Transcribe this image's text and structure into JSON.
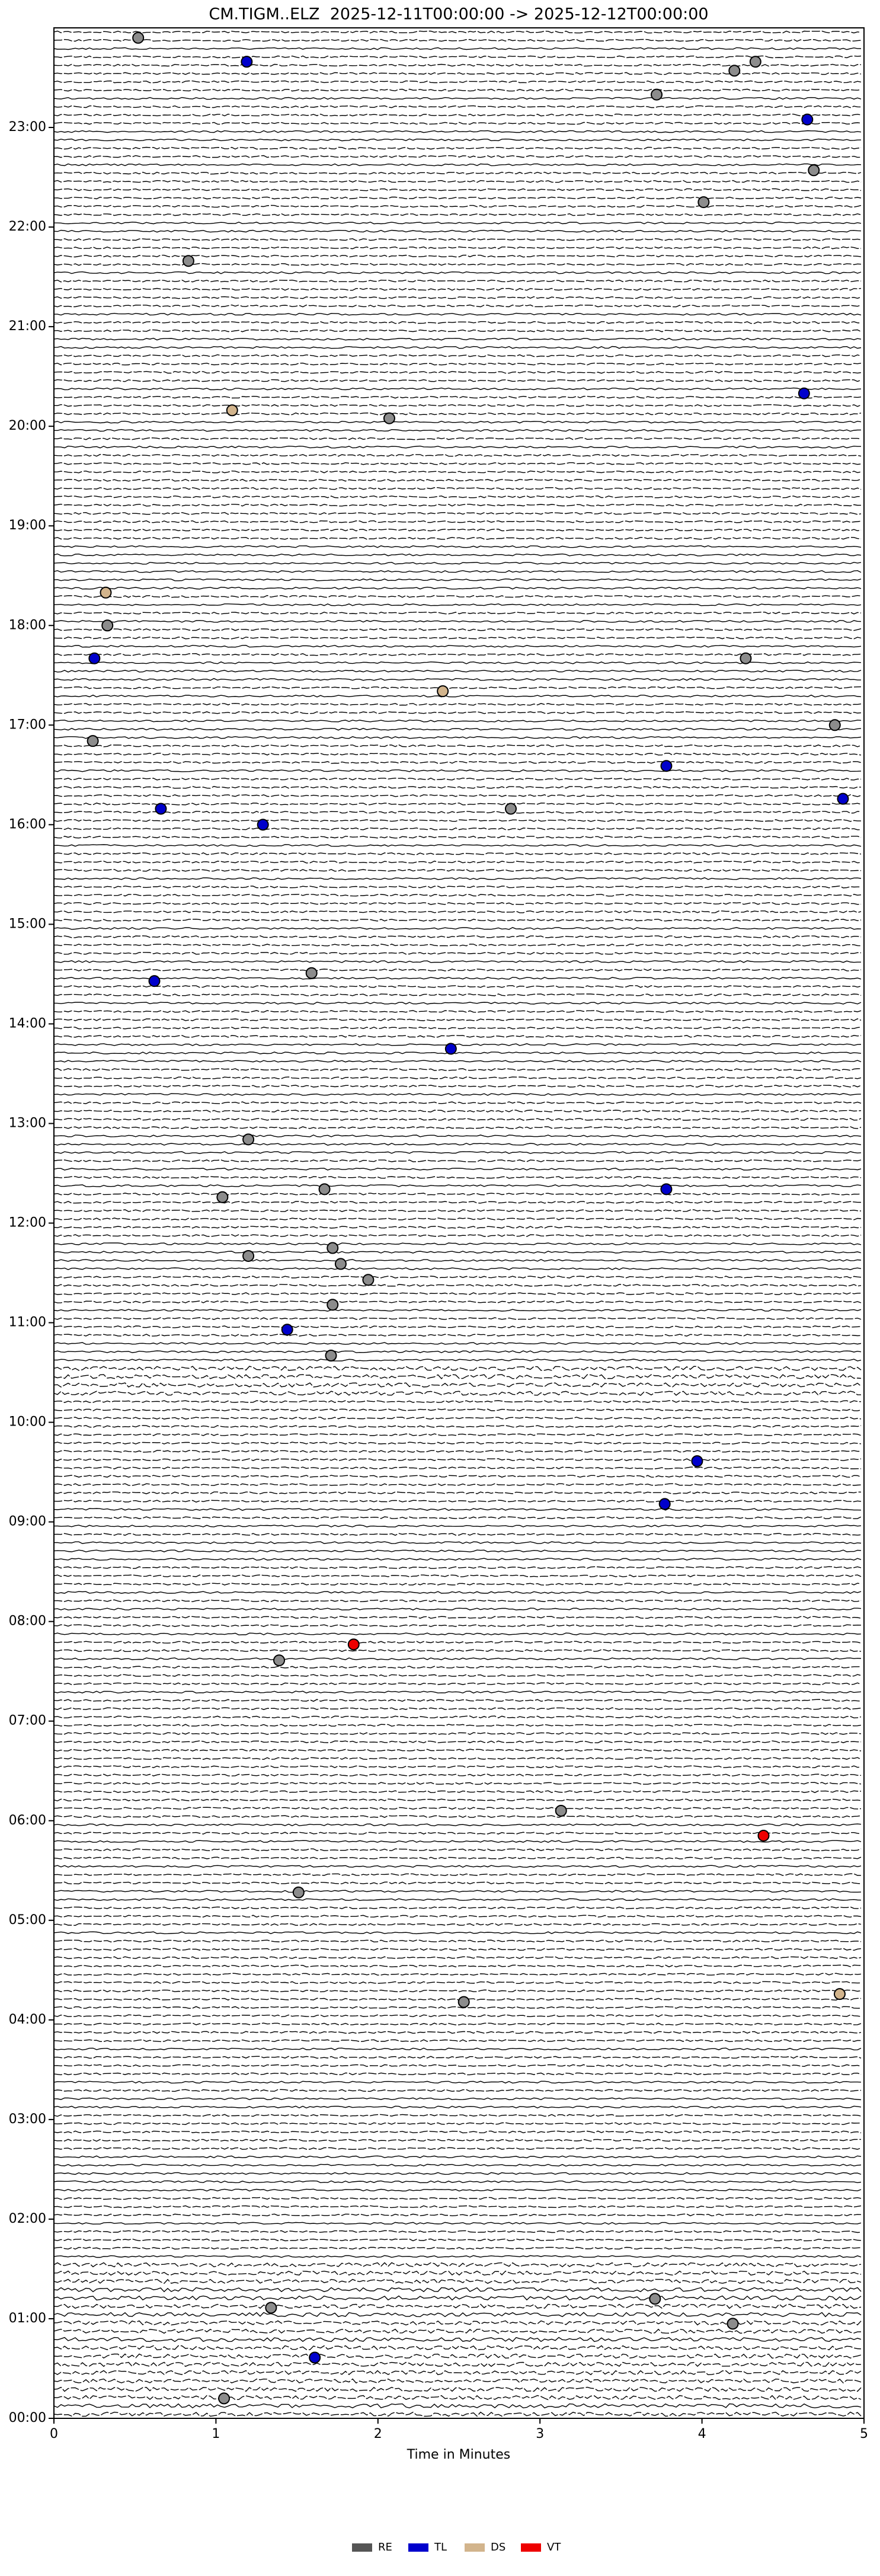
{
  "chart_data": {
    "type": "helicorder",
    "title": "CM.TIGM..ELZ  2025-12-11T00:00:00 -> 2025-12-12T00:00:00",
    "x_label": "Time in Minutes",
    "xlim": [
      0,
      5
    ],
    "xticks": [
      0,
      1,
      2,
      3,
      4,
      5
    ],
    "ylim": [
      24,
      0
    ],
    "yticks": [
      {
        "value": 0,
        "label": "00:00"
      },
      {
        "value": 1,
        "label": "01:00"
      },
      {
        "value": 2,
        "label": "02:00"
      },
      {
        "value": 3,
        "label": "03:00"
      },
      {
        "value": 4,
        "label": "04:00"
      },
      {
        "value": 5,
        "label": "05:00"
      },
      {
        "value": 6,
        "label": "06:00"
      },
      {
        "value": 7,
        "label": "07:00"
      },
      {
        "value": 8,
        "label": "08:00"
      },
      {
        "value": 9,
        "label": "09:00"
      },
      {
        "value": 10,
        "label": "10:00"
      },
      {
        "value": 11,
        "label": "11:00"
      },
      {
        "value": 12,
        "label": "12:00"
      },
      {
        "value": 13,
        "label": "13:00"
      },
      {
        "value": 14,
        "label": "14:00"
      },
      {
        "value": 15,
        "label": "15:00"
      },
      {
        "value": 16,
        "label": "16:00"
      },
      {
        "value": 17,
        "label": "17:00"
      },
      {
        "value": 18,
        "label": "18:00"
      },
      {
        "value": 19,
        "label": "19:00"
      },
      {
        "value": 20,
        "label": "20:00"
      },
      {
        "value": 21,
        "label": "21:00"
      },
      {
        "value": 22,
        "label": "22:00"
      },
      {
        "value": 23,
        "label": "23:00"
      }
    ],
    "legend_position": "bottom",
    "series": [
      {
        "name": "RE",
        "color": "#8c8c8c",
        "legend_color": "#555555",
        "x": [
          1.05,
          4.19,
          1.34,
          3.71,
          2.53,
          1.51,
          3.13,
          1.39,
          1.71,
          1.94,
          1.72,
          1.77,
          1.2,
          1.72,
          1.04,
          1.67,
          1.2,
          1.59,
          2.82,
          0.24,
          4.82,
          4.27,
          0.33,
          2.07,
          0.83,
          4.01,
          4.69,
          3.72,
          4.2,
          4.33,
          0.52
        ],
        "values": [
          0.2,
          0.95,
          1.11,
          1.2,
          4.18,
          5.28,
          6.1,
          7.61,
          10.67,
          11.43,
          11.18,
          11.59,
          11.67,
          11.75,
          12.26,
          12.34,
          12.84,
          14.51,
          16.16,
          16.84,
          17.0,
          17.67,
          18.0,
          20.08,
          21.66,
          22.25,
          22.57,
          23.33,
          23.57,
          23.66,
          23.9
        ]
      },
      {
        "name": "TL",
        "color": "#0000cc",
        "x": [
          1.61,
          3.77,
          3.97,
          1.44,
          3.78,
          2.45,
          0.62,
          1.29,
          0.66,
          4.87,
          3.78,
          0.25,
          4.63,
          4.65,
          1.19
        ],
        "values": [
          0.61,
          9.18,
          9.61,
          10.93,
          12.34,
          13.75,
          14.43,
          16.0,
          16.16,
          16.26,
          16.59,
          17.67,
          20.33,
          23.08,
          23.66
        ]
      },
      {
        "name": "DS",
        "color": "#d2b48c",
        "x": [
          4.85,
          2.4,
          0.32,
          1.1
        ],
        "values": [
          4.26,
          17.34,
          18.33,
          20.16
        ]
      },
      {
        "name": "VT",
        "color": "#ee0000",
        "x": [
          4.38,
          1.85
        ],
        "values": [
          5.85,
          7.77
        ]
      }
    ]
  }
}
